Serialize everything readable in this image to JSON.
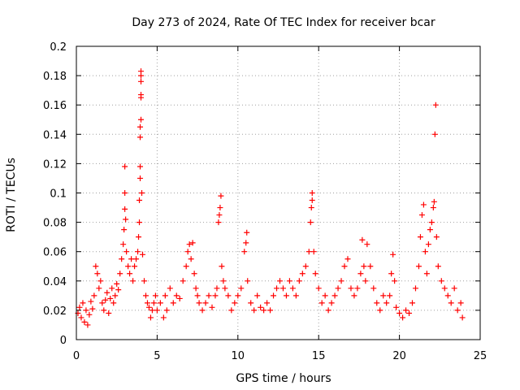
{
  "chart_data": {
    "type": "scatter",
    "title": "Day 273 of 2024, Rate Of TEC Index for receiver bcar",
    "xlabel": "GPS time / hours",
    "ylabel": "ROTI / TECUs",
    "xlim": [
      0,
      25
    ],
    "ylim": [
      0,
      0.2
    ],
    "xticks": [
      0,
      5,
      10,
      15,
      20,
      25
    ],
    "xtick_labels": [
      "0",
      "5",
      "10",
      "15",
      "20",
      "25"
    ],
    "yticks": [
      0,
      0.02,
      0.04,
      0.06,
      0.08,
      0.1,
      0.12,
      0.14,
      0.16,
      0.18,
      0.2
    ],
    "ytick_labels": [
      "0",
      "0.02",
      "0.04",
      "0.06",
      "0.08",
      "0.1",
      "0.12",
      "0.14",
      "0.16",
      "0.18",
      "0.2"
    ],
    "grid": true,
    "marker": "+",
    "color": "#ff0000",
    "series": [
      {
        "points": [
          [
            0.1,
            0.018
          ],
          [
            0.2,
            0.022
          ],
          [
            0.3,
            0.015
          ],
          [
            0.4,
            0.025
          ],
          [
            0.5,
            0.012
          ],
          [
            0.6,
            0.02
          ],
          [
            0.7,
            0.01
          ],
          [
            0.8,
            0.017
          ],
          [
            0.9,
            0.026
          ],
          [
            1.0,
            0.021
          ],
          [
            1.1,
            0.03
          ],
          [
            1.2,
            0.05
          ],
          [
            1.3,
            0.045
          ],
          [
            1.4,
            0.035
          ],
          [
            1.5,
            0.04
          ],
          [
            1.6,
            0.025
          ],
          [
            1.7,
            0.02
          ],
          [
            1.8,
            0.027
          ],
          [
            1.9,
            0.032
          ],
          [
            2.0,
            0.018
          ],
          [
            2.1,
            0.028
          ],
          [
            2.2,
            0.035
          ],
          [
            2.3,
            0.025
          ],
          [
            2.4,
            0.03
          ],
          [
            2.5,
            0.038
          ],
          [
            2.6,
            0.034
          ],
          [
            2.7,
            0.045
          ],
          [
            2.8,
            0.055
          ],
          [
            2.9,
            0.065
          ],
          [
            2.95,
            0.075
          ],
          [
            3.0,
            0.089
          ],
          [
            3.0,
            0.1
          ],
          [
            3.0,
            0.118
          ],
          [
            3.05,
            0.082
          ],
          [
            3.1,
            0.06
          ],
          [
            3.2,
            0.05
          ],
          [
            3.3,
            0.045
          ],
          [
            3.4,
            0.055
          ],
          [
            3.5,
            0.04
          ],
          [
            3.6,
            0.05
          ],
          [
            3.7,
            0.055
          ],
          [
            3.8,
            0.06
          ],
          [
            3.85,
            0.07
          ],
          [
            3.9,
            0.08
          ],
          [
            3.9,
            0.095
          ],
          [
            3.95,
            0.11
          ],
          [
            3.95,
            0.118
          ],
          [
            3.95,
            0.138
          ],
          [
            3.95,
            0.145
          ],
          [
            4.0,
            0.15
          ],
          [
            4.0,
            0.165
          ],
          [
            4.0,
            0.167
          ],
          [
            4.0,
            0.176
          ],
          [
            4.0,
            0.18
          ],
          [
            4.0,
            0.183
          ],
          [
            4.05,
            0.1
          ],
          [
            4.1,
            0.058
          ],
          [
            4.2,
            0.04
          ],
          [
            4.3,
            0.03
          ],
          [
            4.4,
            0.025
          ],
          [
            4.5,
            0.022
          ],
          [
            4.6,
            0.015
          ],
          [
            4.7,
            0.02
          ],
          [
            4.8,
            0.025
          ],
          [
            4.9,
            0.03
          ],
          [
            5.0,
            0.02
          ],
          [
            5.2,
            0.025
          ],
          [
            5.4,
            0.015
          ],
          [
            5.5,
            0.03
          ],
          [
            5.6,
            0.02
          ],
          [
            5.8,
            0.035
          ],
          [
            6.0,
            0.025
          ],
          [
            6.2,
            0.03
          ],
          [
            6.4,
            0.028
          ],
          [
            6.6,
            0.04
          ],
          [
            6.8,
            0.05
          ],
          [
            6.9,
            0.06
          ],
          [
            7.0,
            0.065
          ],
          [
            7.1,
            0.055
          ],
          [
            7.2,
            0.066
          ],
          [
            7.3,
            0.045
          ],
          [
            7.4,
            0.035
          ],
          [
            7.5,
            0.03
          ],
          [
            7.6,
            0.025
          ],
          [
            7.8,
            0.02
          ],
          [
            8.0,
            0.025
          ],
          [
            8.2,
            0.03
          ],
          [
            8.4,
            0.022
          ],
          [
            8.6,
            0.03
          ],
          [
            8.7,
            0.035
          ],
          [
            8.8,
            0.08
          ],
          [
            8.85,
            0.085
          ],
          [
            8.9,
            0.09
          ],
          [
            8.95,
            0.098
          ],
          [
            9.0,
            0.05
          ],
          [
            9.1,
            0.04
          ],
          [
            9.2,
            0.035
          ],
          [
            9.4,
            0.03
          ],
          [
            9.6,
            0.02
          ],
          [
            9.8,
            0.025
          ],
          [
            10.0,
            0.03
          ],
          [
            10.2,
            0.035
          ],
          [
            10.4,
            0.06
          ],
          [
            10.5,
            0.066
          ],
          [
            10.55,
            0.073
          ],
          [
            10.6,
            0.04
          ],
          [
            10.8,
            0.025
          ],
          [
            11.0,
            0.02
          ],
          [
            11.2,
            0.03
          ],
          [
            11.4,
            0.022
          ],
          [
            11.6,
            0.02
          ],
          [
            11.8,
            0.025
          ],
          [
            12.0,
            0.02
          ],
          [
            12.2,
            0.03
          ],
          [
            12.4,
            0.035
          ],
          [
            12.6,
            0.04
          ],
          [
            12.8,
            0.035
          ],
          [
            13.0,
            0.03
          ],
          [
            13.2,
            0.04
          ],
          [
            13.4,
            0.035
          ],
          [
            13.6,
            0.03
          ],
          [
            13.8,
            0.04
          ],
          [
            14.0,
            0.045
          ],
          [
            14.2,
            0.05
          ],
          [
            14.4,
            0.06
          ],
          [
            14.5,
            0.08
          ],
          [
            14.55,
            0.09
          ],
          [
            14.6,
            0.095
          ],
          [
            14.6,
            0.1
          ],
          [
            14.7,
            0.06
          ],
          [
            14.8,
            0.045
          ],
          [
            15.0,
            0.035
          ],
          [
            15.2,
            0.025
          ],
          [
            15.4,
            0.03
          ],
          [
            15.6,
            0.02
          ],
          [
            15.8,
            0.025
          ],
          [
            16.0,
            0.03
          ],
          [
            16.2,
            0.035
          ],
          [
            16.4,
            0.04
          ],
          [
            16.6,
            0.05
          ],
          [
            16.8,
            0.055
          ],
          [
            17.0,
            0.035
          ],
          [
            17.2,
            0.03
          ],
          [
            17.4,
            0.035
          ],
          [
            17.6,
            0.045
          ],
          [
            17.7,
            0.068
          ],
          [
            17.8,
            0.05
          ],
          [
            17.9,
            0.04
          ],
          [
            18.0,
            0.065
          ],
          [
            18.2,
            0.05
          ],
          [
            18.4,
            0.035
          ],
          [
            18.6,
            0.025
          ],
          [
            18.8,
            0.02
          ],
          [
            19.0,
            0.03
          ],
          [
            19.2,
            0.025
          ],
          [
            19.4,
            0.03
          ],
          [
            19.5,
            0.045
          ],
          [
            19.6,
            0.058
          ],
          [
            19.7,
            0.04
          ],
          [
            19.8,
            0.022
          ],
          [
            20.0,
            0.018
          ],
          [
            20.2,
            0.015
          ],
          [
            20.4,
            0.02
          ],
          [
            20.6,
            0.018
          ],
          [
            20.8,
            0.025
          ],
          [
            21.0,
            0.035
          ],
          [
            21.2,
            0.05
          ],
          [
            21.3,
            0.07
          ],
          [
            21.4,
            0.085
          ],
          [
            21.5,
            0.092
          ],
          [
            21.6,
            0.06
          ],
          [
            21.7,
            0.045
          ],
          [
            21.8,
            0.065
          ],
          [
            21.9,
            0.075
          ],
          [
            22.0,
            0.08
          ],
          [
            22.1,
            0.09
          ],
          [
            22.15,
            0.094
          ],
          [
            22.2,
            0.14
          ],
          [
            22.25,
            0.16
          ],
          [
            22.3,
            0.07
          ],
          [
            22.4,
            0.05
          ],
          [
            22.6,
            0.04
          ],
          [
            22.8,
            0.035
          ],
          [
            23.0,
            0.03
          ],
          [
            23.2,
            0.025
          ],
          [
            23.4,
            0.035
          ],
          [
            23.6,
            0.02
          ],
          [
            23.8,
            0.025
          ],
          [
            23.9,
            0.015
          ]
        ]
      }
    ]
  }
}
